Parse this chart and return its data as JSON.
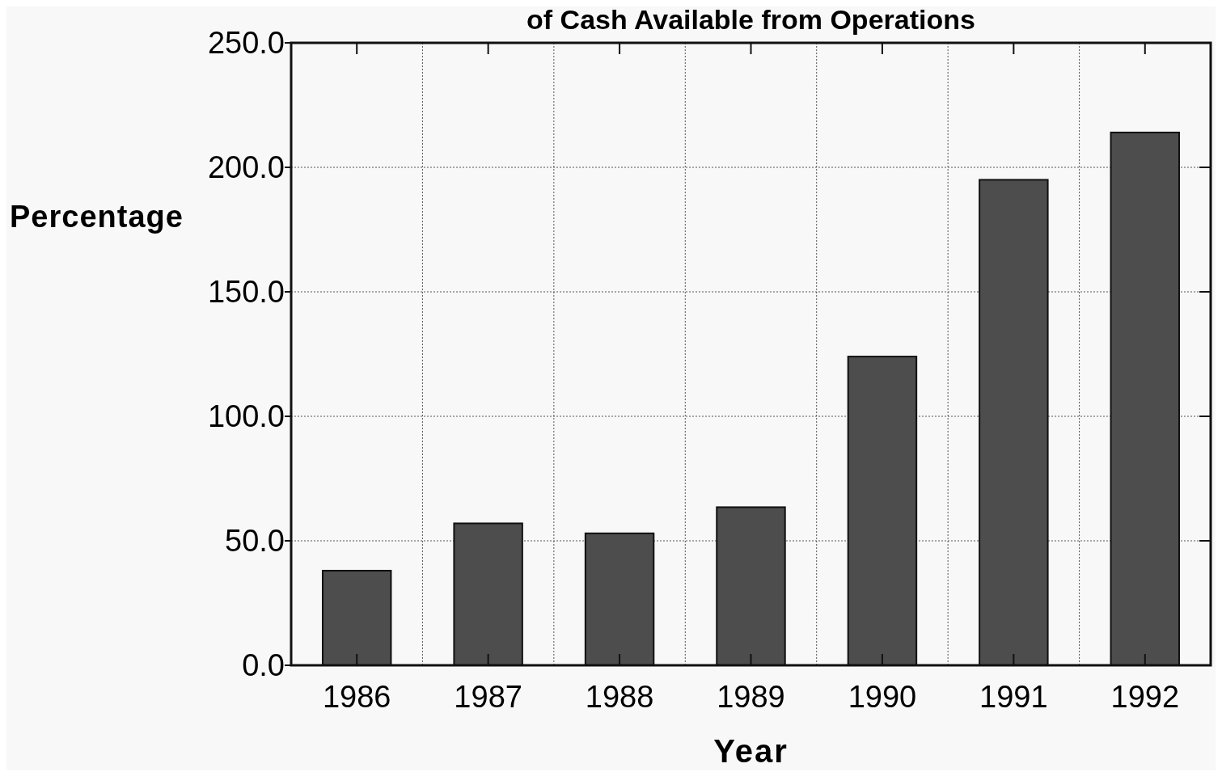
{
  "chart_data": {
    "type": "bar",
    "title": "of Cash Available from Operations",
    "xlabel": "Year",
    "ylabel": "Percentage",
    "categories": [
      "1986",
      "1987",
      "1988",
      "1989",
      "1990",
      "1991",
      "1992"
    ],
    "values": [
      38,
      57,
      53,
      63.5,
      124,
      195,
      214
    ],
    "color": "#4d4d4d",
    "ylim": [
      0,
      250
    ],
    "yticks": [
      {
        "value": 0,
        "label": "0.0"
      },
      {
        "value": 50,
        "label": "50.0"
      },
      {
        "value": 100,
        "label": "100.0"
      },
      {
        "value": 150,
        "label": "150.0"
      },
      {
        "value": 200,
        "label": "200.0"
      },
      {
        "value": 250,
        "label": "250.0"
      }
    ],
    "grid": true
  }
}
